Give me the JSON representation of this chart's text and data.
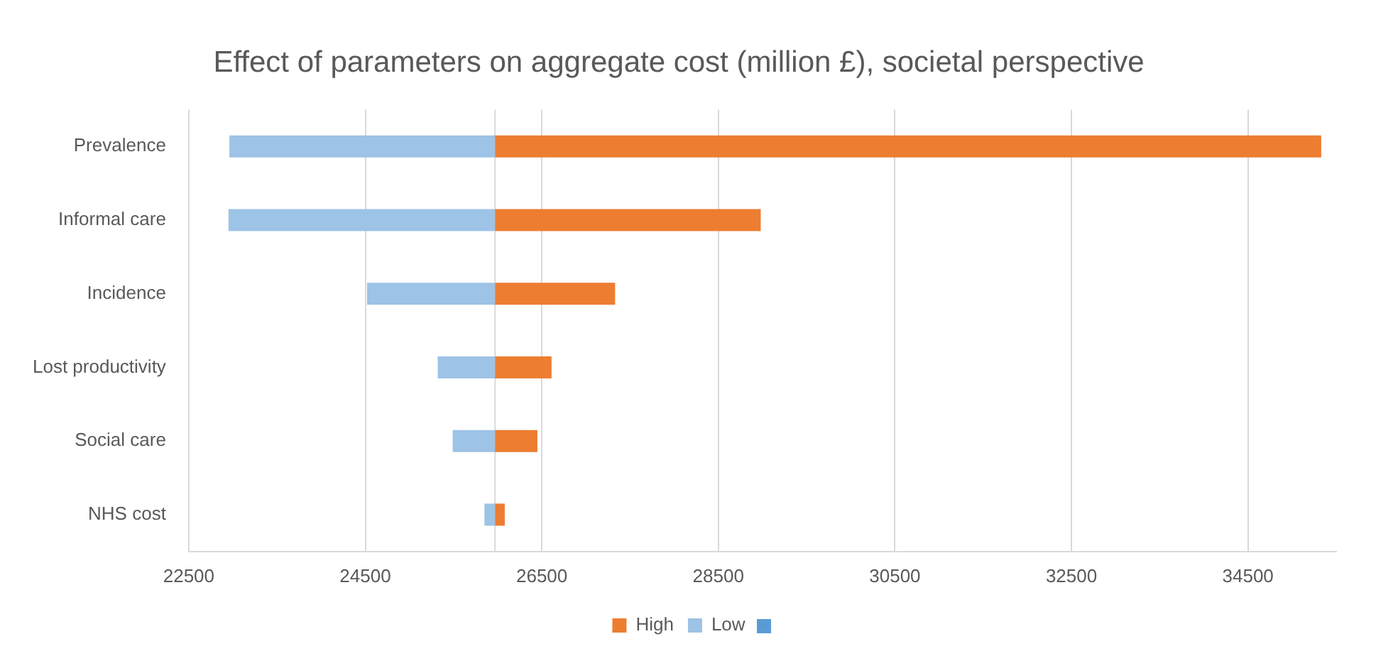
{
  "chart_data": {
    "type": "bar",
    "orientation": "horizontal",
    "title": "Effect of parameters on aggregate cost (million £), societal perspective",
    "categories": [
      "Prevalence",
      "Informal care",
      "Incidence",
      "Lost productivity",
      "Social care",
      "NHS cost"
    ],
    "series": [
      {
        "name": "High",
        "color": "#ed7d31",
        "base": [
          25970,
          25970,
          25970,
          25970,
          25970,
          25970
        ],
        "values": [
          9360,
          3010,
          1360,
          640,
          480,
          110
        ]
      },
      {
        "name": "Low",
        "color": "#9dc3e6",
        "base": [
          22960,
          22950,
          24520,
          25320,
          25490,
          25850
        ],
        "values": [
          3010,
          3020,
          1450,
          650,
          480,
          120
        ]
      }
    ],
    "xlim": [
      22500,
      35500
    ],
    "xticks": [
      22500,
      24500,
      26500,
      28500,
      30500,
      32500,
      34500
    ],
    "ref_lines": [
      {
        "axis": "x",
        "value": 25970,
        "color": "#d9d9d9"
      }
    ],
    "grid": "x",
    "legend": "bottom"
  }
}
